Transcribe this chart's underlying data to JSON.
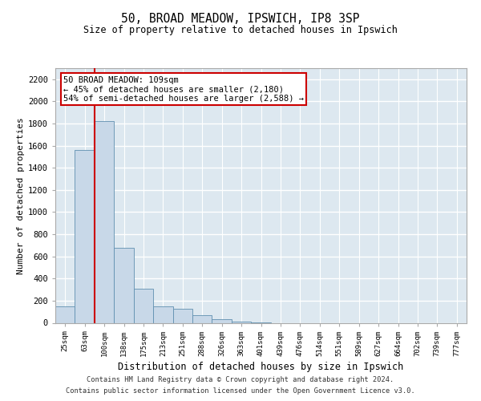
{
  "title1": "50, BROAD MEADOW, IPSWICH, IP8 3SP",
  "title2": "Size of property relative to detached houses in Ipswich",
  "xlabel": "Distribution of detached houses by size in Ipswich",
  "ylabel": "Number of detached properties",
  "footer1": "Contains HM Land Registry data © Crown copyright and database right 2024.",
  "footer2": "Contains public sector information licensed under the Open Government Licence v3.0.",
  "annotation_line1": "50 BROAD MEADOW: 109sqm",
  "annotation_line2": "← 45% of detached houses are smaller (2,180)",
  "annotation_line3": "54% of semi-detached houses are larger (2,588) →",
  "property_bin_index": 2,
  "bar_color": "#c8d8e8",
  "bar_edge_color": "#6090b0",
  "red_line_color": "#cc0000",
  "background_color": "#dde8f0",
  "grid_color": "#ffffff",
  "annotation_box_color": "#cc0000",
  "categories": [
    "25sqm",
    "63sqm",
    "100sqm",
    "138sqm",
    "175sqm",
    "213sqm",
    "251sqm",
    "288sqm",
    "326sqm",
    "363sqm",
    "401sqm",
    "439sqm",
    "476sqm",
    "514sqm",
    "551sqm",
    "589sqm",
    "627sqm",
    "664sqm",
    "702sqm",
    "739sqm",
    "777sqm"
  ],
  "values": [
    145,
    1560,
    1820,
    680,
    310,
    145,
    130,
    70,
    35,
    10,
    3,
    0,
    0,
    0,
    0,
    0,
    0,
    0,
    0,
    0,
    0
  ],
  "ylim": [
    0,
    2300
  ],
  "yticks": [
    0,
    200,
    400,
    600,
    800,
    1000,
    1200,
    1400,
    1600,
    1800,
    2000,
    2200
  ]
}
